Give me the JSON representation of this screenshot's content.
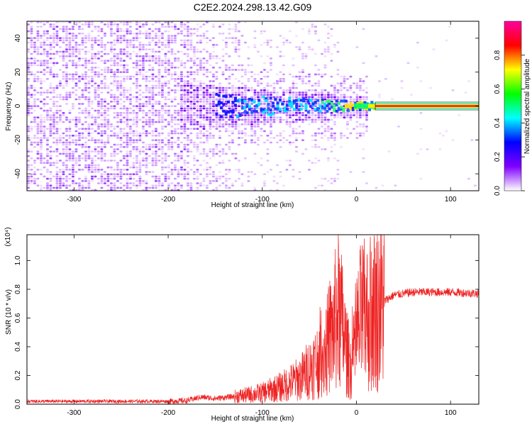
{
  "title": "C2E2.2024.298.13.42.G09",
  "chart_data": [
    {
      "type": "heatmap",
      "xlabel": "Height of straight line (km)",
      "ylabel": "Frequency (Hz)",
      "xlim": [
        -350,
        130
      ],
      "ylim": [
        -50,
        50
      ],
      "xticks": [
        -300,
        -200,
        -100,
        0,
        100
      ],
      "yticks": [
        -40,
        -20,
        0,
        20,
        40
      ],
      "colorbar": {
        "label": "Normalized spectral amplitude",
        "range": [
          0,
          1
        ],
        "ticks": [
          "0.0",
          "0.2",
          "0.4",
          "0.6",
          "0.8"
        ],
        "colors": [
          "#ffffff",
          "#8000ff",
          "#0000ff",
          "#00ffff",
          "#00ff00",
          "#ffff00",
          "#ff0000",
          "#ff00a0"
        ]
      },
      "features": {
        "noise_region_x": [
          -350,
          -120
        ],
        "signal_band_center_hz": 0,
        "strong_signal_from_x": 20
      }
    },
    {
      "type": "line",
      "xlabel": "Height of straight line (km)",
      "ylabel": "SNR (10 * v/v)",
      "scale_label": "(x10⁴)",
      "xlim": [
        -350,
        130
      ],
      "ylim": [
        0,
        1.18
      ],
      "xticks": [
        -300,
        -200,
        -100,
        0,
        100
      ],
      "yticks": [
        "0.0",
        "0.2",
        "0.4",
        "0.6",
        "0.8",
        "1.0"
      ],
      "series": [
        {
          "color": "#ee2222",
          "points": [
            [
              -350,
              0.02
            ],
            [
              -300,
              0.02
            ],
            [
              -250,
              0.02
            ],
            [
              -200,
              0.02
            ],
            [
              -180,
              0.025
            ],
            [
              -165,
              0.05
            ],
            [
              -150,
              0.04
            ],
            [
              -120,
              0.06
            ],
            [
              -100,
              0.08
            ],
            [
              -80,
              0.12
            ],
            [
              -60,
              0.18
            ],
            [
              -45,
              0.28
            ],
            [
              -35,
              0.35
            ],
            [
              -25,
              0.5
            ],
            [
              -20,
              0.65
            ],
            [
              -15,
              0.55
            ],
            [
              -10,
              0.35
            ],
            [
              -5,
              0.25
            ],
            [
              0,
              0.45
            ],
            [
              5,
              0.62
            ],
            [
              10,
              0.6
            ],
            [
              20,
              0.68
            ],
            [
              30,
              0.72
            ],
            [
              40,
              0.76
            ],
            [
              60,
              0.78
            ],
            [
              80,
              0.78
            ],
            [
              100,
              0.78
            ],
            [
              130,
              0.77
            ]
          ]
        }
      ]
    }
  ]
}
